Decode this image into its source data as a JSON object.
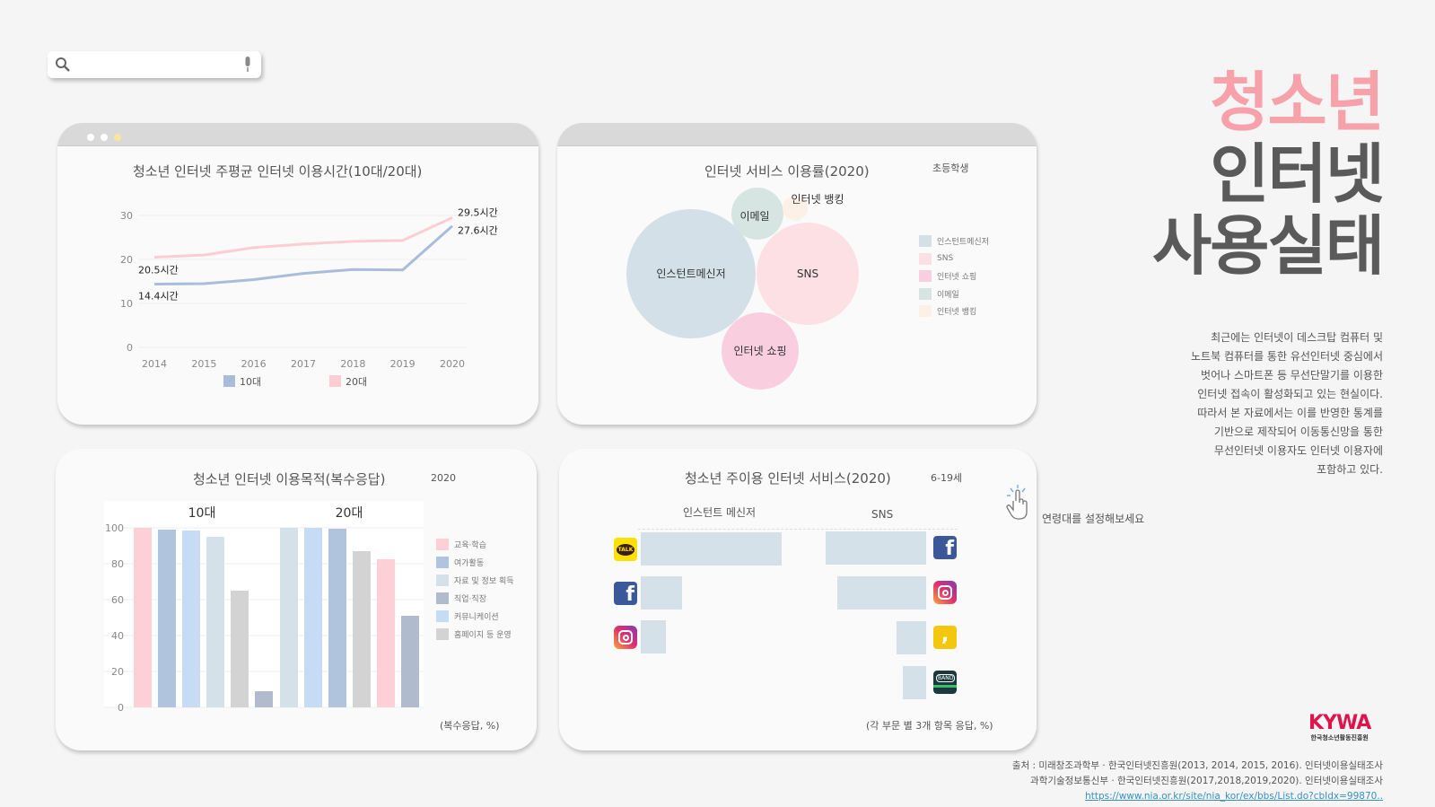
{
  "search": {
    "placeholder": "",
    "icon": "search-icon",
    "mic_icon": "microphone-icon"
  },
  "header": {
    "line1": "청소년",
    "line2": "인터넷",
    "line3": "사용실태",
    "colors": {
      "line1": "#f7a1ab",
      "rest": "#5a5a5a"
    }
  },
  "description": [
    "최근에는 인터넷이 데스크탑 컴퓨터 및",
    "노트북 컴퓨터를 통한 유선인터넷 중심에서",
    "벗어나 스마트폰 등 무선단말기를 이용한",
    "인터넷 접속이 활성화되고 있는 현실이다.",
    "따라서 본 자료에서는 이를 반영한 통계를",
    "기반으로 제작되어 이동통신망을 통한",
    "무선인터넷 이용자도 인터넷 이용자에",
    "포함하고 있다."
  ],
  "hint": "연령대를 설정해보세요",
  "logo": {
    "text": "KYWA",
    "sub": "한국청소년활동진흥원"
  },
  "source": {
    "line1": "출처 : 미래창조과학부 · 한국인터넷진흥원(2013, 2014, 2015, 2016). 인터넷이용실태조사",
    "line2": "과학기술정보통신부 · 한국인터넷진흥원(2017,2018,2019,2020). 인터넷이용실태조사",
    "link": "https://www.nia.or.kr/site/nia_kor/ex/bbs/List.do?cbIdx=99870.."
  },
  "chart_data": [
    {
      "type": "line",
      "title": "청소년 인터넷 주평균 인터넷 이용시간(10대/20대)",
      "x": [
        "2014",
        "2015",
        "2016",
        "2017",
        "2018",
        "2019",
        "2020"
      ],
      "ylim": [
        0,
        30
      ],
      "yticks": [
        "0",
        "10",
        "20",
        "30"
      ],
      "grid": true,
      "legend": "bottom",
      "series": [
        {
          "name": "10대",
          "color": "#a9bddb",
          "values": [
            14.4,
            14.5,
            15.4,
            16.8,
            17.7,
            17.6,
            27.6
          ],
          "labels": {
            "first": "14.4시간",
            "last": "27.6시간"
          }
        },
        {
          "name": "20대",
          "color": "#fdcdd3",
          "values": [
            20.5,
            21.0,
            22.7,
            23.5,
            24.1,
            24.3,
            29.5
          ],
          "labels": {
            "first": "20.5시간",
            "last": "29.5시간"
          }
        }
      ]
    },
    {
      "type": "bubble",
      "title": "인터넷 서비스 이용률(2020)",
      "filter": "초등학생",
      "legend": "right",
      "items": [
        {
          "name": "인스턴트메신저",
          "color": "#d3e0e8"
        },
        {
          "name": "SNS",
          "color": "#fde0e3"
        },
        {
          "name": "인터넷 쇼핑",
          "color": "#f9cfe0"
        },
        {
          "name": "이메일",
          "color": "#d7e5e2"
        },
        {
          "name": "인터넷 뱅킹",
          "color": "#fdf0e6"
        }
      ]
    },
    {
      "type": "bar",
      "title": "청소년 인터넷 이용목적(복수응답)",
      "year": "2020",
      "note": "(복수응답, %)",
      "ylim": [
        0,
        100
      ],
      "yticks": [
        "0",
        "20",
        "40",
        "60",
        "80",
        "100"
      ],
      "legend": "right",
      "legend_items": [
        {
          "name": "교육·학습",
          "color": "#fdd0d7"
        },
        {
          "name": "여가활동",
          "color": "#b0c4de"
        },
        {
          "name": "자료 및 정보 획득",
          "color": "#d4e1e9"
        },
        {
          "name": "직업·직장",
          "color": "#b0bccd"
        },
        {
          "name": "커뮤니케이션",
          "color": "#c6dcf5"
        },
        {
          "name": "홈페이지 등 운영",
          "color": "#d3d3d3"
        }
      ],
      "groups": [
        {
          "name": "10대",
          "bars": [
            {
              "cat": "교육·학습",
              "value": 100
            },
            {
              "cat": "여가활동",
              "value": 99
            },
            {
              "cat": "커뮤니케이션",
              "value": 98.5
            },
            {
              "cat": "자료 및 정보 획득",
              "value": 95
            },
            {
              "cat": "홈페이지 등 운영",
              "value": 65
            },
            {
              "cat": "직업·직장",
              "value": 9
            }
          ]
        },
        {
          "name": "20대",
          "bars": [
            {
              "cat": "자료 및 정보 획득",
              "value": 100
            },
            {
              "cat": "커뮤니케이션",
              "value": 100
            },
            {
              "cat": "여가활동",
              "value": 99.5
            },
            {
              "cat": "홈페이지 등 운영",
              "value": 87
            },
            {
              "cat": "교육·학습",
              "value": 82.5
            },
            {
              "cat": "직업·직장",
              "value": 51
            }
          ]
        }
      ]
    },
    {
      "type": "bar",
      "title": "청소년 주이용 인터넷 서비스(2020)",
      "filter": "6-19세",
      "note": "(각 부문 별 3개 항목 응답, %)",
      "color": "#d4e1e9",
      "panels": [
        {
          "name": "인스턴트 메신저",
          "items": [
            {
              "icon": "kakaotalk-icon",
              "value": 95
            },
            {
              "icon": "facebook-icon",
              "value": 28
            },
            {
              "icon": "instagram-icon",
              "value": 17
            }
          ]
        },
        {
          "name": "SNS",
          "items": [
            {
              "icon": "facebook-icon",
              "value": 68
            },
            {
              "icon": "instagram-icon",
              "value": 60
            },
            {
              "icon": "kakaostory-icon",
              "value": 20
            },
            {
              "icon": "band-icon",
              "value": 16
            }
          ]
        }
      ]
    }
  ]
}
